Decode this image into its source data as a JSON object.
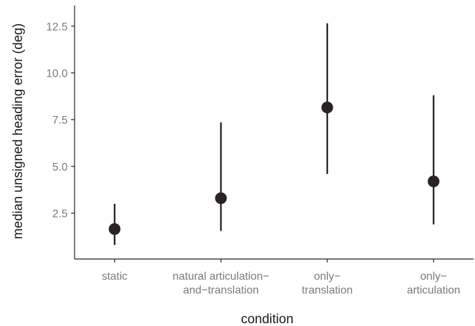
{
  "chart_data": {
    "type": "scatter",
    "xlabel": "condition",
    "ylabel": "median unsigned heading error (deg)",
    "categories": [
      {
        "lines": [
          "static"
        ]
      },
      {
        "lines": [
          "natural articulation−",
          "and−translation"
        ]
      },
      {
        "lines": [
          "only−",
          "translation"
        ]
      },
      {
        "lines": [
          "only−",
          "articulation"
        ]
      }
    ],
    "values": [
      1.65,
      3.3,
      8.15,
      4.2
    ],
    "lower": [
      0.8,
      1.55,
      4.6,
      1.9
    ],
    "upper": [
      3.0,
      7.35,
      12.65,
      8.8
    ],
    "yticks": [
      2.5,
      5.0,
      7.5,
      10.0,
      12.5
    ],
    "ytick_labels": [
      "2.5",
      "5.0",
      "7.5",
      "10.0",
      "12.5"
    ],
    "ylim": [
      0.05,
      13.6
    ],
    "grid": false,
    "colors": {
      "point": "#2a2326",
      "axis": "#1a1a1a",
      "tick_text": "#7a7a7a"
    }
  }
}
